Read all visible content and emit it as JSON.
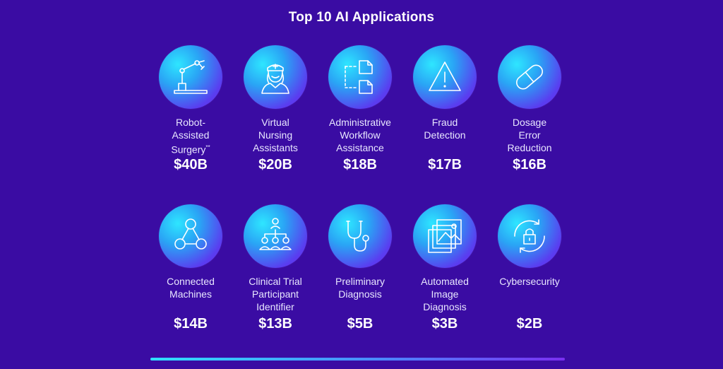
{
  "title": "Top 10 AI Applications",
  "chart_data": {
    "type": "table",
    "title": "Top 10 AI Applications",
    "categories": [
      "Robot-Assisted Surgery**",
      "Virtual Nursing Assistants",
      "Administrative Workflow Assistance",
      "Fraud Detection",
      "Dosage Error Reduction",
      "Connected Machines",
      "Clinical Trial Participant Identifier",
      "Preliminary Diagnosis",
      "Automated Image Diagnosis",
      "Cybersecurity"
    ],
    "values": [
      40,
      20,
      18,
      17,
      16,
      14,
      13,
      5,
      3,
      2
    ],
    "value_labels": [
      "$40B",
      "$20B",
      "$18B",
      "$17B",
      "$16B",
      "$14B",
      "$13B",
      "$5B",
      "$3B",
      "$2B"
    ],
    "unit": "$B"
  },
  "items": [
    {
      "label_lines": "Robot-\nAssisted\nSurgery",
      "label_mark": "**",
      "value": "$40B",
      "icon": "robot-arm-icon"
    },
    {
      "label_lines": "Virtual\nNursing\nAssistants",
      "label_mark": "",
      "value": "$20B",
      "icon": "nurse-icon"
    },
    {
      "label_lines": "Administrative\nWorkflow\nAssistance",
      "label_mark": "",
      "value": "$18B",
      "icon": "workflow-documents-icon"
    },
    {
      "label_lines": "Fraud\nDetection",
      "label_mark": "",
      "value": "$17B",
      "icon": "warning-triangle-icon"
    },
    {
      "label_lines": "Dosage\nError\nReduction",
      "label_mark": "",
      "value": "$16B",
      "icon": "pill-capsule-icon"
    },
    {
      "label_lines": "Connected\nMachines",
      "label_mark": "",
      "value": "$14B",
      "icon": "connected-nodes-icon"
    },
    {
      "label_lines": "Clinical Trial\nParticipant\nIdentifier",
      "label_mark": "",
      "value": "$13B",
      "icon": "people-hierarchy-icon"
    },
    {
      "label_lines": "Preliminary\nDiagnosis",
      "label_mark": "",
      "value": "$5B",
      "icon": "stethoscope-icon"
    },
    {
      "label_lines": "Automated\nImage\nDiagnosis",
      "label_mark": "",
      "value": "$3B",
      "icon": "image-stack-icon"
    },
    {
      "label_lines": "Cybersecurity",
      "label_mark": "",
      "value": "$2B",
      "icon": "lock-refresh-icon"
    }
  ],
  "colors": {
    "background": "#3a0ca3",
    "circle_light": "#2ee6ff",
    "circle_dark": "#6a2ee8",
    "text": "#ffffff"
  }
}
